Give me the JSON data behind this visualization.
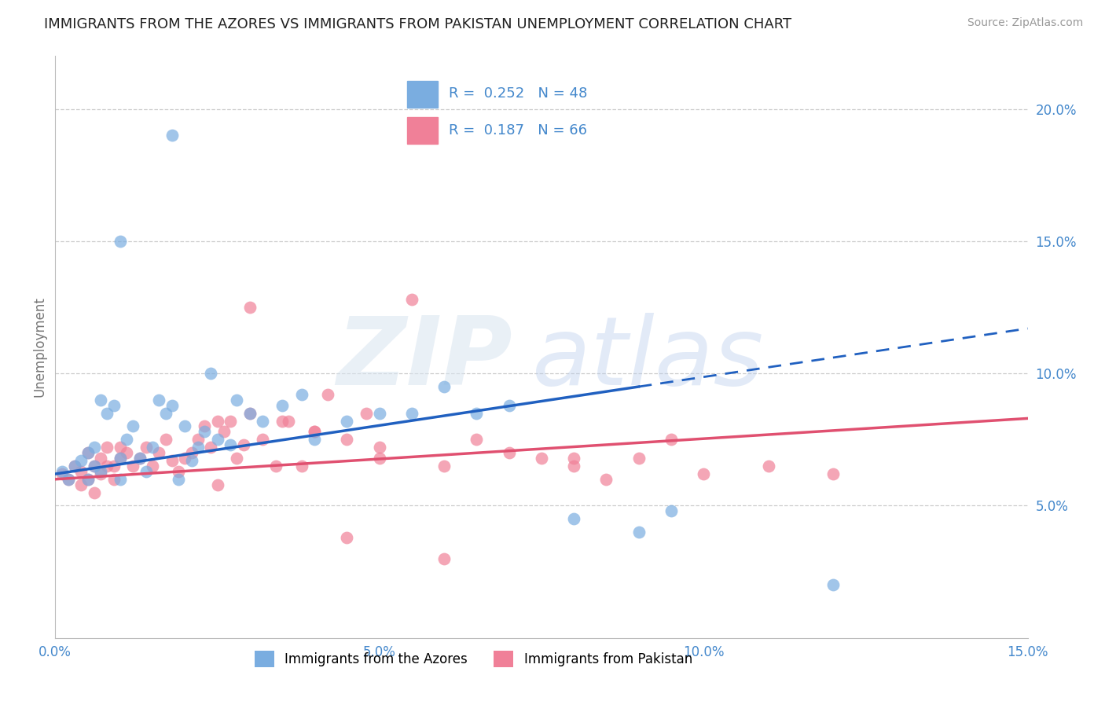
{
  "title": "IMMIGRANTS FROM THE AZORES VS IMMIGRANTS FROM PAKISTAN UNEMPLOYMENT CORRELATION CHART",
  "source": "Source: ZipAtlas.com",
  "ylabel": "Unemployment",
  "xlim": [
    0.0,
    0.15
  ],
  "ylim": [
    0.0,
    0.22
  ],
  "xticks": [
    0.0,
    0.05,
    0.1,
    0.15
  ],
  "xticklabels": [
    "0.0%",
    "5.0%",
    "10.0%",
    "15.0%"
  ],
  "yticks": [
    0.05,
    0.1,
    0.15,
    0.2
  ],
  "yticklabels": [
    "5.0%",
    "10.0%",
    "15.0%",
    "20.0%"
  ],
  "azores_R": 0.252,
  "azores_N": 48,
  "pakistan_R": 0.187,
  "pakistan_N": 66,
  "azores_color": "#7aade0",
  "pakistan_color": "#f08098",
  "azores_line_color": "#2060c0",
  "pakistan_line_color": "#e05070",
  "background_color": "#ffffff",
  "grid_color": "#cccccc",
  "watermark": "ZIPAtlas",
  "watermark_color": "#d0ddf0",
  "title_fontsize": 13,
  "axis_tick_color": "#4488cc",
  "azores_x": [
    0.001,
    0.002,
    0.003,
    0.004,
    0.005,
    0.005,
    0.006,
    0.006,
    0.007,
    0.007,
    0.008,
    0.009,
    0.01,
    0.01,
    0.011,
    0.012,
    0.013,
    0.014,
    0.015,
    0.016,
    0.017,
    0.018,
    0.019,
    0.02,
    0.021,
    0.022,
    0.023,
    0.025,
    0.027,
    0.03,
    0.032,
    0.035,
    0.038,
    0.04,
    0.045,
    0.05,
    0.055,
    0.06,
    0.065,
    0.07,
    0.08,
    0.09,
    0.095,
    0.01,
    0.018,
    0.024,
    0.028,
    0.12
  ],
  "azores_y": [
    0.063,
    0.06,
    0.065,
    0.067,
    0.06,
    0.07,
    0.065,
    0.072,
    0.063,
    0.09,
    0.085,
    0.088,
    0.06,
    0.068,
    0.075,
    0.08,
    0.068,
    0.063,
    0.072,
    0.09,
    0.085,
    0.088,
    0.06,
    0.08,
    0.067,
    0.072,
    0.078,
    0.075,
    0.073,
    0.085,
    0.082,
    0.088,
    0.092,
    0.075,
    0.082,
    0.085,
    0.085,
    0.095,
    0.085,
    0.088,
    0.045,
    0.04,
    0.048,
    0.15,
    0.19,
    0.1,
    0.09,
    0.02
  ],
  "pakistan_x": [
    0.001,
    0.002,
    0.003,
    0.004,
    0.004,
    0.005,
    0.005,
    0.006,
    0.006,
    0.007,
    0.007,
    0.008,
    0.008,
    0.009,
    0.009,
    0.01,
    0.01,
    0.011,
    0.012,
    0.013,
    0.014,
    0.015,
    0.016,
    0.017,
    0.018,
    0.019,
    0.02,
    0.021,
    0.022,
    0.023,
    0.024,
    0.025,
    0.026,
    0.027,
    0.028,
    0.029,
    0.03,
    0.032,
    0.034,
    0.036,
    0.038,
    0.04,
    0.042,
    0.045,
    0.048,
    0.05,
    0.055,
    0.06,
    0.065,
    0.07,
    0.075,
    0.08,
    0.085,
    0.09,
    0.095,
    0.1,
    0.11,
    0.12,
    0.03,
    0.04,
    0.05,
    0.025,
    0.035,
    0.045,
    0.06,
    0.08
  ],
  "pakistan_y": [
    0.062,
    0.06,
    0.065,
    0.063,
    0.058,
    0.06,
    0.07,
    0.065,
    0.055,
    0.062,
    0.068,
    0.065,
    0.072,
    0.06,
    0.065,
    0.068,
    0.072,
    0.07,
    0.065,
    0.068,
    0.072,
    0.065,
    0.07,
    0.075,
    0.067,
    0.063,
    0.068,
    0.07,
    0.075,
    0.08,
    0.072,
    0.082,
    0.078,
    0.082,
    0.068,
    0.073,
    0.085,
    0.075,
    0.065,
    0.082,
    0.065,
    0.078,
    0.092,
    0.075,
    0.085,
    0.068,
    0.128,
    0.065,
    0.075,
    0.07,
    0.068,
    0.065,
    0.06,
    0.068,
    0.075,
    0.062,
    0.065,
    0.062,
    0.125,
    0.078,
    0.072,
    0.058,
    0.082,
    0.038,
    0.03,
    0.068
  ]
}
